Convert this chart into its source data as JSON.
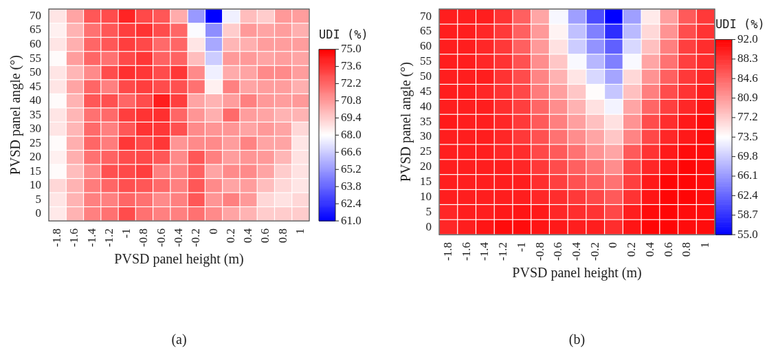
{
  "chart_data": [
    {
      "type": "heatmap",
      "xlabel": "PVSD panel height (m)",
      "ylabel": "PVSD panel angle (°)",
      "clabel": "UDI (%)",
      "categories": [
        "-1.8",
        "-1.6",
        "-1.4",
        "-1.2",
        "-1",
        "-0.8",
        "-0.6",
        "-0.4",
        "-0.2",
        "0",
        "0.2",
        "0.4",
        "0.6",
        "0.8",
        "1"
      ],
      "y_categories": [
        "70",
        "65",
        "60",
        "55",
        "50",
        "45",
        "40",
        "35",
        "30",
        "25",
        "20",
        "15",
        "10",
        "5",
        "0"
      ],
      "clim": [
        61.0,
        75.0
      ],
      "cticks": [
        {
          "value": 61.0,
          "label": "61.0"
        },
        {
          "value": 62.4,
          "label": "62.4"
        },
        {
          "value": 63.8,
          "label": "63.8"
        },
        {
          "value": 65.2,
          "label": "65.2"
        },
        {
          "value": 66.6,
          "label": "66.6"
        },
        {
          "value": 68.0,
          "label": "68.0"
        },
        {
          "value": 69.4,
          "label": "69.4"
        },
        {
          "value": 70.8,
          "label": "70.8"
        },
        {
          "value": 72.2,
          "label": "72.2"
        },
        {
          "value": 73.6,
          "label": "73.6"
        },
        {
          "value": 75.0,
          "label": "75.0"
        }
      ],
      "cells": [
        [
          68.7,
          70.5,
          72.6,
          72.9,
          74.0,
          73.0,
          72.6,
          70.3,
          65.2,
          61.0,
          67.6,
          69.8,
          69.4,
          70.8,
          70.7
        ],
        [
          68.4,
          70.1,
          71.9,
          72.6,
          73.3,
          73.6,
          72.9,
          72.2,
          67.9,
          64.9,
          69.4,
          70.8,
          70.5,
          70.7,
          70.2
        ],
        [
          68.7,
          70.2,
          72.2,
          72.6,
          73.3,
          73.0,
          72.1,
          72.2,
          68.7,
          65.6,
          70.0,
          70.2,
          70.7,
          70.7,
          70.7
        ],
        [
          68.1,
          70.7,
          72.2,
          71.9,
          73.0,
          73.5,
          72.3,
          72.3,
          69.8,
          66.6,
          70.8,
          70.8,
          70.5,
          70.7,
          70.5
        ],
        [
          68.7,
          70.0,
          71.2,
          72.9,
          73.7,
          73.5,
          72.9,
          73.5,
          71.2,
          67.6,
          70.3,
          70.5,
          71.2,
          71.2,
          70.7
        ],
        [
          68.7,
          70.5,
          72.2,
          71.5,
          73.0,
          73.3,
          72.9,
          72.8,
          71.9,
          68.4,
          71.5,
          70.5,
          70.7,
          70.7,
          70.2
        ],
        [
          68.1,
          70.1,
          72.6,
          72.8,
          72.2,
          72.9,
          74.2,
          73.3,
          70.5,
          70.1,
          70.7,
          71.5,
          70.8,
          70.7,
          70.8
        ],
        [
          68.7,
          70.0,
          71.9,
          72.1,
          73.3,
          73.6,
          73.7,
          72.2,
          70.9,
          70.2,
          72.1,
          70.7,
          70.5,
          70.1,
          70.1
        ],
        [
          68.7,
          70.0,
          72.1,
          71.5,
          72.6,
          73.6,
          73.5,
          72.8,
          71.2,
          70.9,
          70.9,
          70.5,
          70.8,
          70.5,
          69.1
        ],
        [
          68.1,
          70.2,
          72.2,
          71.6,
          73.5,
          73.0,
          73.5,
          70.9,
          71.2,
          71.2,
          70.7,
          71.4,
          70.5,
          70.5,
          68.7
        ],
        [
          68.4,
          70.2,
          71.9,
          72.3,
          72.9,
          73.0,
          72.6,
          71.2,
          72.6,
          71.5,
          70.7,
          70.9,
          70.8,
          70.0,
          68.8
        ],
        [
          68.1,
          69.8,
          71.2,
          72.8,
          73.0,
          73.3,
          71.5,
          71.4,
          72.3,
          70.5,
          71.2,
          71.2,
          70.5,
          69.4,
          68.8
        ],
        [
          69.1,
          70.1,
          71.6,
          72.2,
          72.8,
          72.6,
          72.1,
          71.5,
          72.6,
          71.2,
          70.5,
          70.7,
          69.8,
          69.1,
          68.7
        ],
        [
          68.7,
          70.1,
          71.5,
          71.5,
          72.2,
          71.9,
          71.2,
          71.5,
          72.6,
          70.9,
          71.5,
          70.8,
          69.1,
          68.8,
          69.1
        ],
        [
          68.6,
          70.1,
          71.5,
          71.9,
          72.9,
          71.9,
          71.5,
          71.5,
          71.9,
          71.2,
          70.5,
          70.1,
          69.4,
          69.4,
          69.4
        ]
      ],
      "annotations": [
        "(a)"
      ]
    },
    {
      "type": "heatmap",
      "xlabel": "PVSD panel height (m)",
      "ylabel": "PVSD panel angle (°)",
      "clabel": "UDI (%)",
      "categories": [
        "-1.8",
        "-1.6",
        "-1.4",
        "-1.2",
        "-1",
        "-0.8",
        "-0.6",
        "-0.4",
        "-0.2",
        "0",
        "0.2",
        "0.4",
        "0.6",
        "0.8",
        "1"
      ],
      "y_categories": [
        "70",
        "65",
        "60",
        "55",
        "50",
        "45",
        "40",
        "35",
        "30",
        "25",
        "20",
        "15",
        "10",
        "5",
        "0"
      ],
      "clim": [
        55.0,
        92.0
      ],
      "cticks": [
        {
          "value": 55.0,
          "label": "55.0"
        },
        {
          "value": 58.7,
          "label": "58.7"
        },
        {
          "value": 62.4,
          "label": "62.4"
        },
        {
          "value": 66.1,
          "label": "66.1"
        },
        {
          "value": 69.8,
          "label": "69.8"
        },
        {
          "value": 73.5,
          "label": "73.5"
        },
        {
          "value": 77.2,
          "label": "77.2"
        },
        {
          "value": 80.9,
          "label": "80.9"
        },
        {
          "value": 84.6,
          "label": "84.6"
        },
        {
          "value": 88.3,
          "label": "88.3"
        },
        {
          "value": 92.0,
          "label": "92.0"
        }
      ],
      "cells": [
        [
          89.8,
          89.8,
          89.8,
          88.3,
          85.0,
          80.0,
          72.9,
          66.5,
          60.5,
          55.0,
          66.5,
          75.0,
          80.5,
          85.5,
          87.9
        ],
        [
          89.8,
          89.8,
          89.2,
          87.9,
          85.0,
          80.9,
          74.4,
          68.9,
          64.3,
          58.3,
          68.5,
          76.3,
          81.3,
          86.4,
          88.3
        ],
        [
          89.8,
          89.8,
          89.2,
          87.9,
          85.0,
          80.9,
          75.7,
          69.8,
          65.7,
          62.0,
          70.7,
          78.1,
          82.8,
          87.4,
          88.7
        ],
        [
          89.8,
          89.8,
          89.2,
          88.3,
          86.1,
          81.8,
          77.6,
          73.1,
          68.3,
          64.3,
          73.1,
          80.0,
          83.7,
          87.4,
          88.7
        ],
        [
          89.8,
          89.8,
          89.8,
          88.3,
          86.5,
          82.4,
          79.1,
          75.4,
          70.7,
          67.0,
          76.3,
          81.3,
          85.0,
          87.9,
          89.2
        ],
        [
          89.8,
          89.8,
          89.2,
          88.3,
          86.8,
          83.1,
          80.5,
          77.6,
          73.7,
          69.4,
          78.1,
          82.8,
          86.5,
          88.3,
          89.8
        ],
        [
          89.8,
          89.8,
          89.8,
          88.7,
          87.4,
          84.6,
          81.8,
          79.1,
          75.7,
          72.6,
          80.0,
          84.6,
          87.4,
          89.2,
          90.5
        ],
        [
          90.2,
          89.8,
          89.8,
          89.2,
          87.9,
          85.5,
          82.8,
          80.5,
          78.1,
          75.7,
          81.3,
          86.5,
          88.7,
          90.2,
          91.1
        ],
        [
          89.8,
          89.8,
          89.8,
          89.2,
          87.9,
          86.1,
          83.7,
          81.8,
          80.0,
          77.6,
          82.4,
          86.8,
          89.2,
          90.2,
          91.1
        ],
        [
          89.8,
          89.8,
          89.8,
          89.2,
          88.7,
          86.8,
          85.5,
          83.7,
          81.3,
          80.0,
          85.5,
          88.3,
          90.2,
          91.1,
          91.1
        ],
        [
          89.8,
          89.8,
          89.8,
          89.8,
          89.2,
          87.9,
          86.5,
          85.0,
          83.7,
          81.8,
          86.8,
          89.2,
          90.5,
          91.6,
          91.1
        ],
        [
          89.8,
          89.8,
          89.8,
          89.8,
          89.8,
          88.7,
          87.4,
          86.1,
          85.0,
          83.7,
          87.4,
          90.2,
          91.6,
          91.6,
          91.1
        ],
        [
          89.8,
          89.8,
          89.8,
          89.8,
          89.8,
          89.2,
          88.7,
          87.9,
          86.8,
          85.5,
          88.3,
          90.5,
          91.6,
          91.6,
          91.1
        ],
        [
          89.2,
          89.8,
          89.8,
          90.2,
          90.5,
          90.2,
          89.2,
          88.7,
          88.3,
          86.8,
          89.8,
          91.1,
          91.6,
          91.1,
          91.1
        ],
        [
          89.2,
          89.8,
          90.5,
          91.1,
          91.1,
          90.5,
          90.2,
          89.8,
          89.8,
          88.7,
          90.5,
          91.6,
          91.6,
          91.1,
          91.1
        ]
      ],
      "annotations": [
        "(b)"
      ]
    }
  ]
}
